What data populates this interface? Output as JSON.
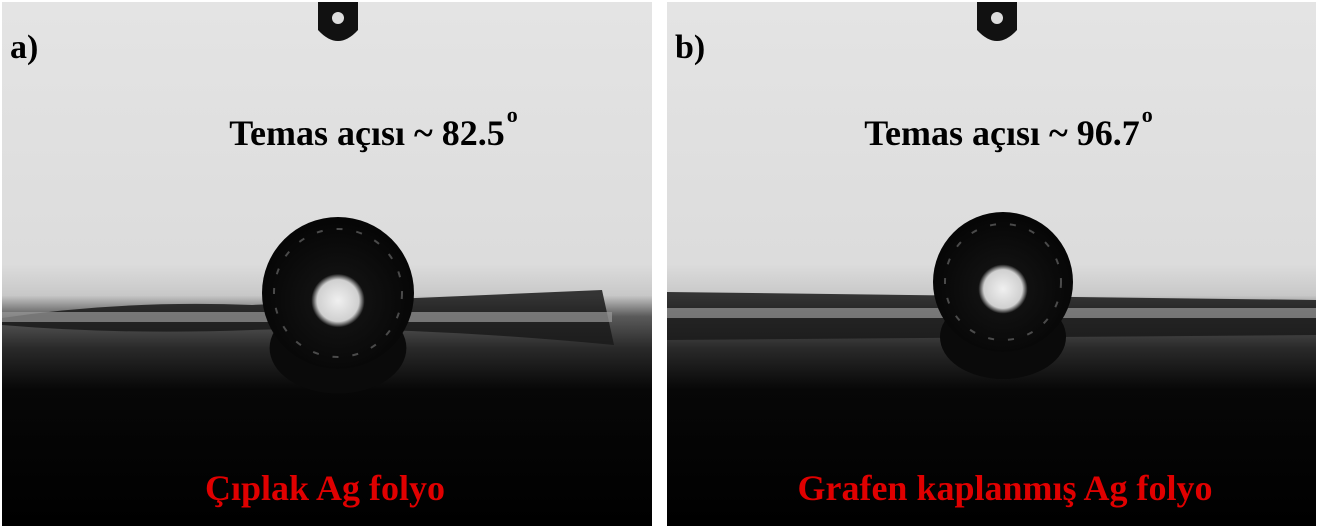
{
  "panels": [
    {
      "label": "a)",
      "angle_text": "Temas açısı ~ 82.5",
      "degree": "o",
      "caption": "Çıplak Ag folyo"
    },
    {
      "label": "b)",
      "angle_text": "Temas açısı ~ 96.7",
      "degree": "o",
      "caption": "Grafen kaplanmış Ag folyo"
    }
  ]
}
